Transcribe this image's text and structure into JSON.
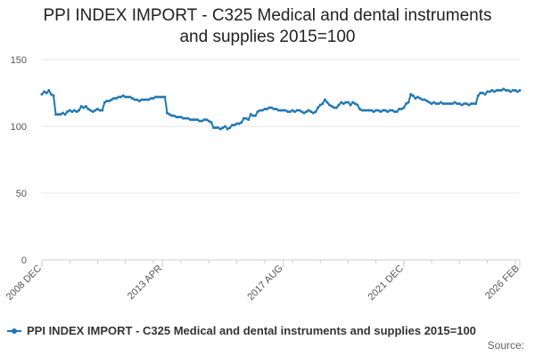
{
  "title_line1": "PPI INDEX IMPORT - C325 Medical and dental instruments",
  "title_line2": "and supplies 2015=100",
  "legend_label": "PPI INDEX IMPORT - C325 Medical and dental instruments and supplies 2015=100",
  "source_label": "Source:",
  "colors": {
    "series": "#1f77b4",
    "grid": "#e6e6e6",
    "axis": "#cccccc"
  },
  "chart_data": {
    "type": "line",
    "ylim": [
      0,
      150
    ],
    "yticks": [
      0,
      50,
      100,
      150
    ],
    "xlim": [
      "2008 DEC",
      "2026 FEB"
    ],
    "xticks": [
      "2008 DEC",
      "2013 APR",
      "2017 AUG",
      "2021 DEC",
      "2026 FEB"
    ],
    "grid": true,
    "legend_position": "bottom",
    "series": [
      {
        "name": "PPI INDEX IMPORT - C325 Medical and dental instruments and supplies 2015=100",
        "values": [
          [
            "2008-12",
            124
          ],
          [
            "2009-01",
            126
          ],
          [
            "2009-02",
            125
          ],
          [
            "2009-03",
            127
          ],
          [
            "2009-04",
            124
          ],
          [
            "2009-05",
            123
          ],
          [
            "2009-06",
            109
          ],
          [
            "2009-07",
            109
          ],
          [
            "2009-08",
            109
          ],
          [
            "2009-09",
            110
          ],
          [
            "2009-10",
            109
          ],
          [
            "2009-11",
            111
          ],
          [
            "2009-12",
            112
          ],
          [
            "2010-01",
            111
          ],
          [
            "2010-02",
            112
          ],
          [
            "2010-03",
            111
          ],
          [
            "2010-04",
            112
          ],
          [
            "2010-05",
            115
          ],
          [
            "2010-06",
            114
          ],
          [
            "2010-07",
            115
          ],
          [
            "2010-08",
            113
          ],
          [
            "2010-09",
            112
          ],
          [
            "2010-10",
            111
          ],
          [
            "2010-11",
            112
          ],
          [
            "2010-12",
            113
          ],
          [
            "2011-01",
            112
          ],
          [
            "2011-02",
            112
          ],
          [
            "2011-03",
            118
          ],
          [
            "2011-04",
            119
          ],
          [
            "2011-05",
            119
          ],
          [
            "2011-06",
            120
          ],
          [
            "2011-07",
            121
          ],
          [
            "2011-08",
            121
          ],
          [
            "2011-09",
            122
          ],
          [
            "2011-10",
            122
          ],
          [
            "2011-11",
            123
          ],
          [
            "2011-12",
            122
          ],
          [
            "2012-01",
            122
          ],
          [
            "2012-02",
            122
          ],
          [
            "2012-03",
            121
          ],
          [
            "2012-04",
            120
          ],
          [
            "2012-05",
            120
          ],
          [
            "2012-06",
            119
          ],
          [
            "2012-07",
            120
          ],
          [
            "2012-08",
            120
          ],
          [
            "2012-09",
            120
          ],
          [
            "2012-10",
            120
          ],
          [
            "2012-11",
            121
          ],
          [
            "2012-12",
            121
          ],
          [
            "2013-01",
            122
          ],
          [
            "2013-02",
            122
          ],
          [
            "2013-03",
            122
          ],
          [
            "2013-04",
            122
          ],
          [
            "2013-05",
            122
          ],
          [
            "2013-06",
            110
          ],
          [
            "2013-07",
            109
          ],
          [
            "2013-08",
            108
          ],
          [
            "2013-09",
            108
          ],
          [
            "2013-10",
            107
          ],
          [
            "2013-11",
            107
          ],
          [
            "2013-12",
            107
          ],
          [
            "2014-01",
            106
          ],
          [
            "2014-02",
            106
          ],
          [
            "2014-03",
            106
          ],
          [
            "2014-04",
            105
          ],
          [
            "2014-05",
            105
          ],
          [
            "2014-06",
            105
          ],
          [
            "2014-07",
            105
          ],
          [
            "2014-08",
            104
          ],
          [
            "2014-09",
            104
          ],
          [
            "2014-10",
            105
          ],
          [
            "2014-11",
            105
          ],
          [
            "2014-12",
            104
          ],
          [
            "2015-01",
            103
          ],
          [
            "2015-02",
            99
          ],
          [
            "2015-03",
            99
          ],
          [
            "2015-04",
            99
          ],
          [
            "2015-05",
            98
          ],
          [
            "2015-06",
            99
          ],
          [
            "2015-07",
            100
          ],
          [
            "2015-08",
            98
          ],
          [
            "2015-09",
            99
          ],
          [
            "2015-10",
            101
          ],
          [
            "2015-11",
            101
          ],
          [
            "2015-12",
            102
          ],
          [
            "2016-01",
            102
          ],
          [
            "2016-02",
            103
          ],
          [
            "2016-03",
            106
          ],
          [
            "2016-04",
            106
          ],
          [
            "2016-05",
            105
          ],
          [
            "2016-06",
            109
          ],
          [
            "2016-07",
            108
          ],
          [
            "2016-08",
            108
          ],
          [
            "2016-09",
            111
          ],
          [
            "2016-10",
            112
          ],
          [
            "2016-11",
            112
          ],
          [
            "2016-12",
            113
          ],
          [
            "2017-01",
            113
          ],
          [
            "2017-02",
            114
          ],
          [
            "2017-03",
            114
          ],
          [
            "2017-04",
            113
          ],
          [
            "2017-05",
            113
          ],
          [
            "2017-06",
            112
          ],
          [
            "2017-07",
            112
          ],
          [
            "2017-08",
            112
          ],
          [
            "2017-09",
            112
          ],
          [
            "2017-10",
            111
          ],
          [
            "2017-11",
            111
          ],
          [
            "2017-12",
            112
          ],
          [
            "2018-01",
            111
          ],
          [
            "2018-02",
            112
          ],
          [
            "2018-03",
            112
          ],
          [
            "2018-04",
            111
          ],
          [
            "2018-05",
            110
          ],
          [
            "2018-06",
            111
          ],
          [
            "2018-07",
            112
          ],
          [
            "2018-08",
            111
          ],
          [
            "2018-09",
            110
          ],
          [
            "2018-10",
            111
          ],
          [
            "2018-11",
            114
          ],
          [
            "2018-12",
            116
          ],
          [
            "2019-01",
            117
          ],
          [
            "2019-02",
            120
          ],
          [
            "2019-03",
            118
          ],
          [
            "2019-04",
            116
          ],
          [
            "2019-05",
            115
          ],
          [
            "2019-06",
            114
          ],
          [
            "2019-07",
            114
          ],
          [
            "2019-08",
            116
          ],
          [
            "2019-09",
            118
          ],
          [
            "2019-10",
            117
          ],
          [
            "2019-11",
            118
          ],
          [
            "2019-12",
            118
          ],
          [
            "2020-01",
            116
          ],
          [
            "2020-02",
            118
          ],
          [
            "2020-03",
            117
          ],
          [
            "2020-04",
            116
          ],
          [
            "2020-05",
            113
          ],
          [
            "2020-06",
            112
          ],
          [
            "2020-07",
            112
          ],
          [
            "2020-08",
            112
          ],
          [
            "2020-09",
            112
          ],
          [
            "2020-10",
            112
          ],
          [
            "2020-11",
            111
          ],
          [
            "2020-12",
            112
          ],
          [
            "2021-01",
            112
          ],
          [
            "2021-02",
            111
          ],
          [
            "2021-03",
            112
          ],
          [
            "2021-04",
            112
          ],
          [
            "2021-05",
            111
          ],
          [
            "2021-06",
            112
          ],
          [
            "2021-07",
            112
          ],
          [
            "2021-08",
            111
          ],
          [
            "2021-09",
            111
          ],
          [
            "2021-10",
            113
          ],
          [
            "2021-11",
            113
          ],
          [
            "2021-12",
            114
          ],
          [
            "2022-01",
            117
          ],
          [
            "2022-02",
            118
          ],
          [
            "2022-03",
            124
          ],
          [
            "2022-04",
            123
          ],
          [
            "2022-05",
            121
          ],
          [
            "2022-06",
            122
          ],
          [
            "2022-07",
            121
          ],
          [
            "2022-08",
            120
          ],
          [
            "2022-09",
            120
          ],
          [
            "2022-10",
            119
          ],
          [
            "2022-11",
            118
          ],
          [
            "2022-12",
            117
          ],
          [
            "2023-01",
            118
          ],
          [
            "2023-02",
            117
          ],
          [
            "2023-03",
            117
          ],
          [
            "2023-04",
            118
          ],
          [
            "2023-05",
            117
          ],
          [
            "2023-06",
            117
          ],
          [
            "2023-07",
            117
          ],
          [
            "2023-08",
            117
          ],
          [
            "2023-09",
            117
          ],
          [
            "2023-10",
            118
          ],
          [
            "2023-11",
            117
          ],
          [
            "2023-12",
            117
          ],
          [
            "2024-01",
            116
          ],
          [
            "2024-02",
            117
          ],
          [
            "2024-03",
            117
          ],
          [
            "2024-04",
            116
          ],
          [
            "2024-05",
            117
          ],
          [
            "2024-06",
            117
          ],
          [
            "2024-07",
            117
          ],
          [
            "2024-08",
            123
          ],
          [
            "2024-09",
            125
          ],
          [
            "2024-10",
            125
          ],
          [
            "2024-11",
            124
          ],
          [
            "2024-12",
            126
          ],
          [
            "2025-01",
            126
          ],
          [
            "2025-02",
            127
          ],
          [
            "2025-03",
            126
          ],
          [
            "2025-04",
            127
          ],
          [
            "2025-05",
            127
          ],
          [
            "2025-06",
            127
          ],
          [
            "2025-07",
            128
          ],
          [
            "2025-08",
            127
          ],
          [
            "2025-09",
            127
          ],
          [
            "2025-10",
            126
          ],
          [
            "2025-11",
            127
          ],
          [
            "2025-12",
            127
          ],
          [
            "2026-01",
            126
          ],
          [
            "2026-02",
            127
          ]
        ]
      }
    ]
  }
}
